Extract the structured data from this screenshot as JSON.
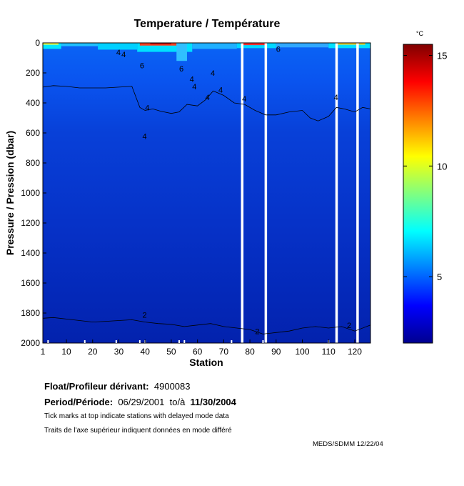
{
  "chart_data": {
    "type": "heatmap",
    "title": "Temperature / Température",
    "xlabel": "Station",
    "ylabel": "Pressure / Pression (dbar)",
    "xlim": [
      1,
      126
    ],
    "ylim": [
      2000,
      0
    ],
    "x_ticks": [
      "1",
      "10",
      "20",
      "30",
      "40",
      "50",
      "60",
      "70",
      "80",
      "90",
      "100",
      "110",
      "120"
    ],
    "y_ticks": [
      "0",
      "200",
      "400",
      "600",
      "800",
      "1000",
      "1200",
      "1400",
      "1600",
      "1800",
      "2000"
    ],
    "colorbar": {
      "unit": "°C",
      "range": [
        2,
        15.5
      ],
      "ticks": [
        "5",
        "10",
        "15"
      ],
      "colormap": [
        "#00008f",
        "#0000ff",
        "#0080ff",
        "#00ffff",
        "#80ff80",
        "#ffff00",
        "#ff8000",
        "#ff0000",
        "#800000"
      ]
    },
    "contour_levels": [
      2,
      4,
      6
    ],
    "contour_labels": [
      "4",
      "4",
      "6",
      "6",
      "4",
      "4",
      "4",
      "4",
      "4",
      "4",
      "4",
      "4",
      "4",
      "6",
      "2",
      "2",
      "2"
    ],
    "isotherm_4C": {
      "station": [
        1,
        5,
        10,
        15,
        20,
        25,
        30,
        35,
        38,
        40,
        43,
        46,
        50,
        53,
        56,
        60,
        63,
        66,
        70,
        74,
        78,
        82,
        86,
        90,
        95,
        100,
        103,
        106,
        110,
        113,
        116,
        120,
        123,
        126
      ],
      "pressure": [
        295,
        285,
        290,
        300,
        300,
        300,
        295,
        290,
        430,
        450,
        440,
        455,
        470,
        460,
        410,
        420,
        380,
        320,
        350,
        400,
        410,
        450,
        480,
        480,
        460,
        450,
        500,
        520,
        490,
        430,
        440,
        460,
        430,
        440
      ]
    },
    "isotherm_2C": {
      "station": [
        1,
        5,
        10,
        15,
        20,
        25,
        30,
        35,
        40,
        45,
        50,
        55,
        60,
        65,
        70,
        75,
        80,
        85,
        90,
        95,
        100,
        105,
        110,
        115,
        120,
        126
      ],
      "pressure": [
        1835,
        1830,
        1840,
        1850,
        1860,
        1855,
        1850,
        1845,
        1860,
        1870,
        1875,
        1890,
        1880,
        1870,
        1890,
        1900,
        1910,
        1940,
        1930,
        1920,
        1900,
        1890,
        1900,
        1890,
        1920,
        1880
      ]
    },
    "data_gaps_stations": [
      77,
      86,
      113,
      121
    ],
    "delayed_mode_ticks": [
      3,
      17,
      29,
      38,
      40,
      53,
      55,
      73,
      85,
      110
    ]
  },
  "info": {
    "float_label": "Float/Profileur dérivant:",
    "float_id": "4900083",
    "period_label": "Period/Période:",
    "period_start": "06/29/2001",
    "period_sep": "to/à",
    "period_end": "11/30/2004",
    "note_en": "Tick marks at top indicate stations with delayed mode data",
    "note_fr": "Traits de l'axe supérieur indiquent données en mode différé",
    "credit": "MEDS/SDMM  12/22/04"
  }
}
